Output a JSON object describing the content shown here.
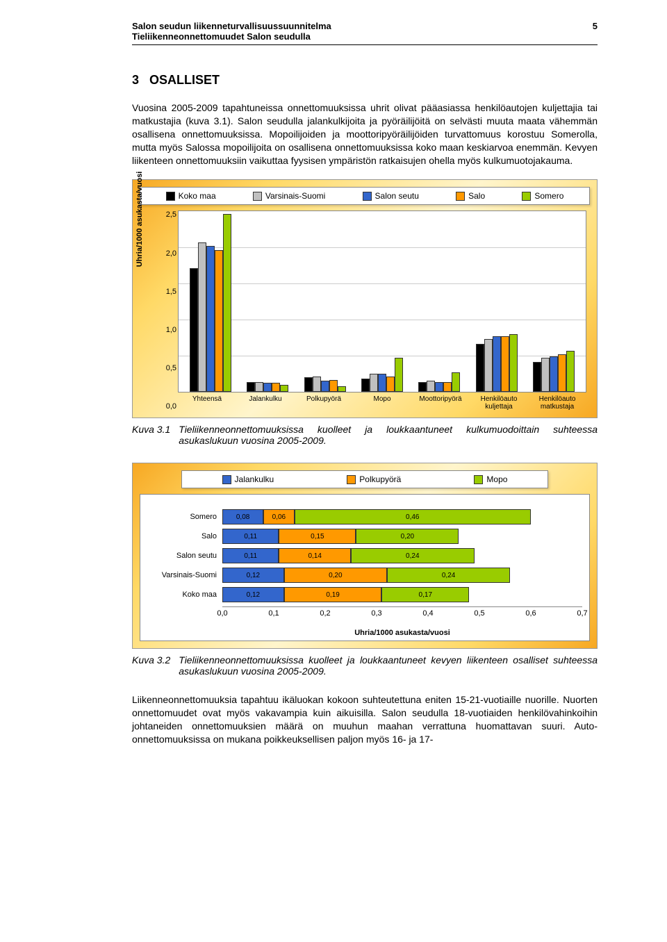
{
  "header": {
    "title": "Salon seudun liikenneturvallisuussuunnitelma",
    "subtitle": "Tieliikenneonnettomuudet Salon seudulla",
    "page_number": "5"
  },
  "section": {
    "number": "3",
    "title": "OSALLISET"
  },
  "paragraphs": {
    "p1": "Vuosina 2005-2009 tapahtuneissa onnettomuuksissa uhrit olivat pääasiassa henkilöautojen kuljettajia tai matkustajia (kuva 3.1). Salon seudulla jalankulkijoita ja pyöräilijöitä on selvästi muuta maata vähemmän osallisena onnettomuuksissa. Mopoilijoiden ja moottoripyöräilijöiden turvattomuus korostuu Somerolla, mutta myös Salossa mopoilijoita on osallisena onnettomuuksissa koko maan keskiarvoa enemmän. Kevyen liikenteen onnettomuuksiin vaikuttaa fyysisen ympäristön ratkaisujen ohella myös kulkumuotojakauma.",
    "p2": "Liikenneonnettomuuksia tapahtuu ikäluokan kokoon suhteutettuna eniten 15-21-vuotiaille nuorille. Nuorten onnettomuudet ovat myös vakavampia kuin aikuisilla. Salon seudulla 18-vuotiaiden henkilövahinkoihin johtaneiden onnettomuuksien määrä on muuhun maahan verrattuna huomattavan suuri. Auto-onnettomuuksissa on mukana poikkeuksellisen paljon myös 16- ja 17-"
  },
  "chart1": {
    "type": "bar",
    "ylabel": "Uhria/1000 asukasta/vuosi",
    "ymax": 2.5,
    "ytick_step": 0.5,
    "yticks": [
      "2,5",
      "2,0",
      "1,5",
      "1,0",
      "0,5",
      "0,0"
    ],
    "categories": [
      "Yhteensä",
      "Jalankulku",
      "Polkupyörä",
      "Mopo",
      "Moottoripyörä",
      "Henkilöauto kuljettaja",
      "Henkilöauto matkustaja"
    ],
    "series": [
      {
        "label": "Koko maa",
        "color": "#000000"
      },
      {
        "label": "Varsinais-Suomi",
        "color": "#c0c0c0"
      },
      {
        "label": "Salon seutu",
        "color": "#3366cc"
      },
      {
        "label": "Salo",
        "color": "#ff9900"
      },
      {
        "label": "Somero",
        "color": "#99cc00"
      }
    ],
    "values": [
      [
        1.7,
        2.05,
        2.0,
        1.95,
        2.45
      ],
      [
        0.12,
        0.12,
        0.11,
        0.11,
        0.08
      ],
      [
        0.19,
        0.2,
        0.14,
        0.15,
        0.06
      ],
      [
        0.17,
        0.24,
        0.24,
        0.2,
        0.46
      ],
      [
        0.12,
        0.14,
        0.12,
        0.12,
        0.25
      ],
      [
        0.65,
        0.72,
        0.75,
        0.75,
        0.78
      ],
      [
        0.4,
        0.46,
        0.48,
        0.5,
        0.55
      ]
    ]
  },
  "caption1": {
    "label": "Kuva 3.1",
    "text": "Tieliikenneonnettomuuksissa kuolleet ja loukkaantuneet kulkumuodoittain suhteessa asukaslukuun vuosina 2005-2009."
  },
  "chart2": {
    "type": "stacked_hbar",
    "xlabel": "Uhria/1000 asukasta/vuosi",
    "xmax": 0.7,
    "xticks": [
      "0,0",
      "0,1",
      "0,2",
      "0,3",
      "0,4",
      "0,5",
      "0,6",
      "0,7"
    ],
    "segments": [
      {
        "label": "Jalankulku",
        "color": "#3366cc"
      },
      {
        "label": "Polkupyörä",
        "color": "#ff9900"
      },
      {
        "label": "Mopo",
        "color": "#99cc00"
      }
    ],
    "rows": [
      {
        "label": "Somero",
        "values": [
          0.08,
          0.06,
          0.46
        ],
        "display": [
          "0,08",
          "0,06",
          "0,46"
        ]
      },
      {
        "label": "Salo",
        "values": [
          0.11,
          0.15,
          0.2
        ],
        "display": [
          "0,11",
          "0,15",
          "0,20"
        ]
      },
      {
        "label": "Salon seutu",
        "values": [
          0.11,
          0.14,
          0.24
        ],
        "display": [
          "0,11",
          "0,14",
          "0,24"
        ]
      },
      {
        "label": "Varsinais-Suomi",
        "values": [
          0.12,
          0.2,
          0.24
        ],
        "display": [
          "0,12",
          "0,20",
          "0,24"
        ]
      },
      {
        "label": "Koko maa",
        "values": [
          0.12,
          0.19,
          0.17
        ],
        "display": [
          "0,12",
          "0,19",
          "0,17"
        ]
      }
    ]
  },
  "caption2": {
    "label": "Kuva 3.2",
    "text": "Tieliikenneonnettomuuksissa kuolleet ja loukkaantuneet kevyen liikenteen osalliset suhteessa asukaslukuun vuosina 2005-2009."
  }
}
